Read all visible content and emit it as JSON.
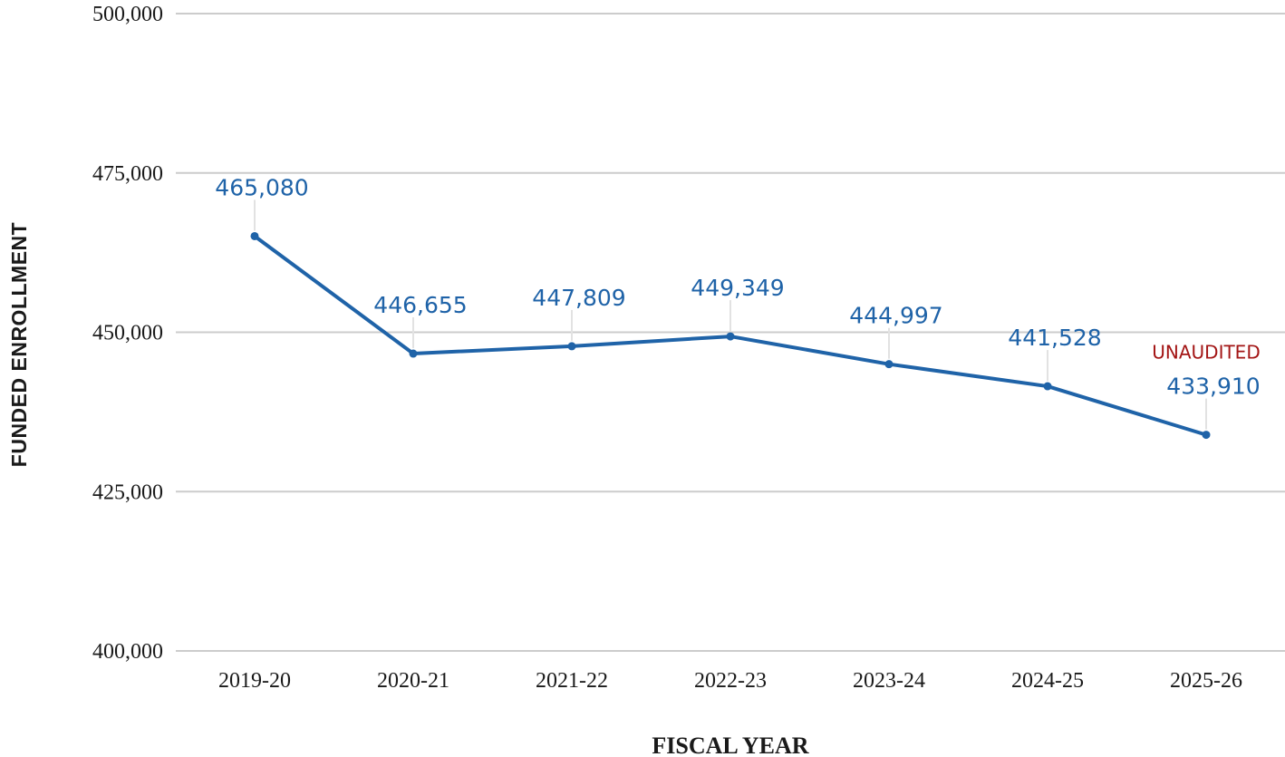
{
  "chart_data": {
    "type": "line",
    "title": "",
    "xlabel": "FISCAL YEAR",
    "ylabel": "FUNDED ENROLLMENT",
    "categories": [
      "2019-20",
      "2020-21",
      "2021-22",
      "2022-23",
      "2023-24",
      "2024-25",
      "2025-26"
    ],
    "series": [
      {
        "values": [
          465080,
          446655,
          447809,
          449349,
          444997,
          441528,
          433910
        ],
        "data_labels": [
          "465,080",
          "446,655",
          "447,809",
          "449,349",
          "444,997",
          "441,528",
          "433,910"
        ],
        "color": "#1f63a8"
      }
    ],
    "ylim": [
      400000,
      500000
    ],
    "yticks": [
      400000,
      425000,
      450000,
      475000,
      500000
    ],
    "ytick_labels": [
      "400,000",
      "425,000",
      "450,000",
      "475,000",
      "500,000"
    ],
    "grid": "horizontal",
    "grid_color": "#cccccc",
    "annotation": {
      "text": "UNAUDITED",
      "category": "2025-26",
      "color": "#a31515"
    }
  }
}
